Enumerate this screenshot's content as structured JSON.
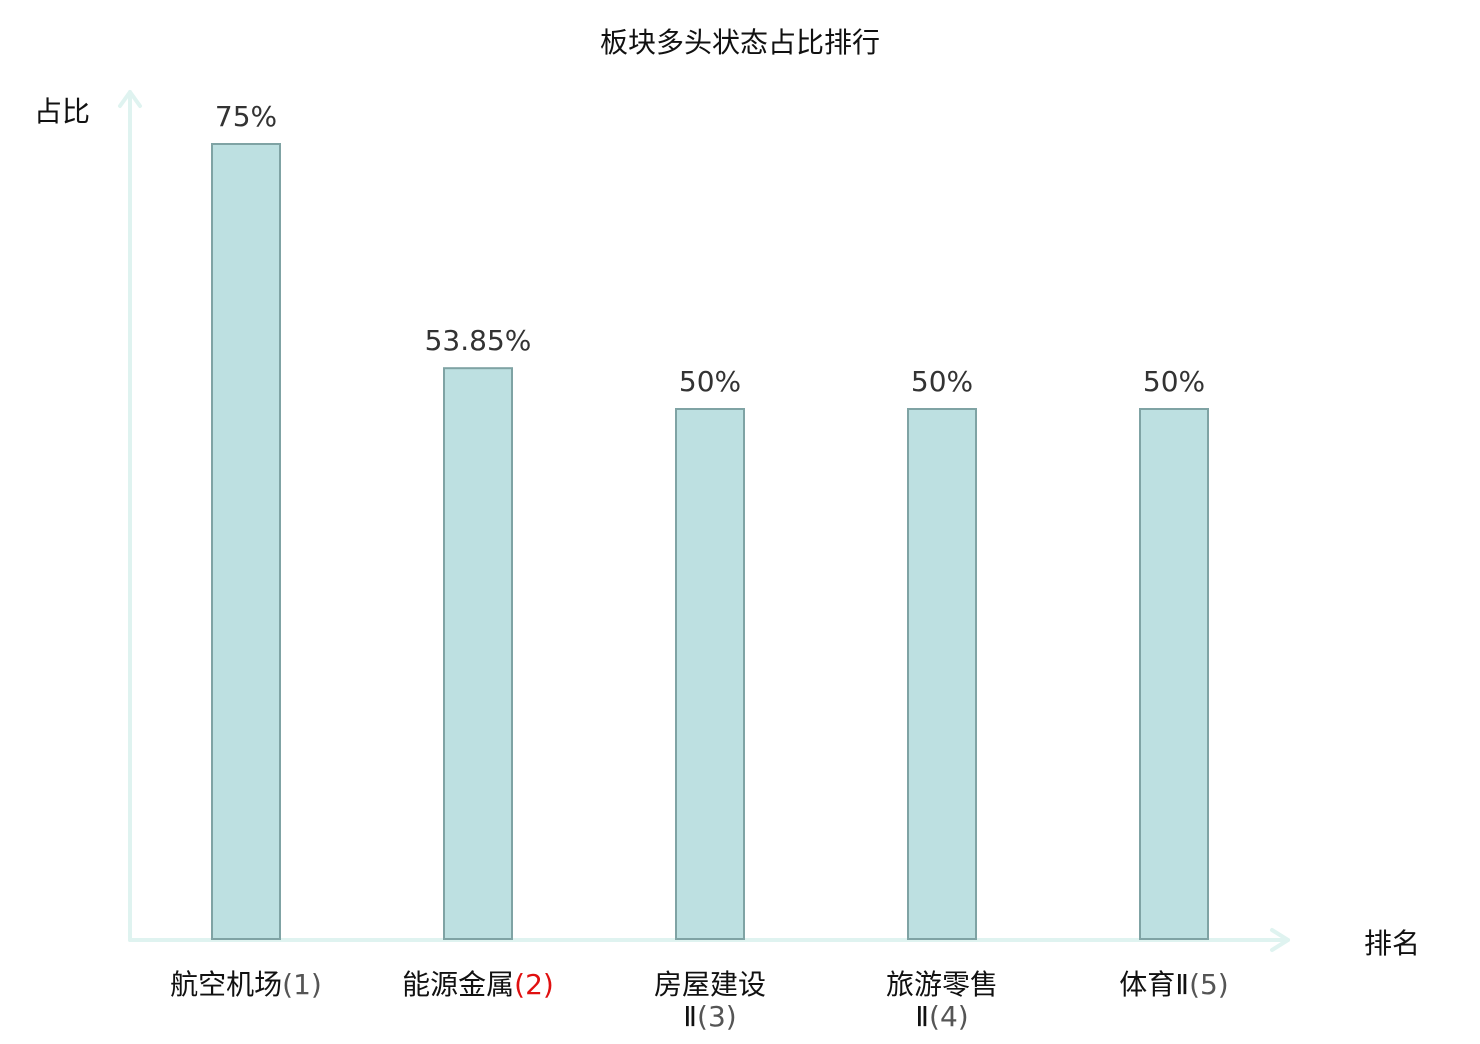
{
  "chart_data": {
    "type": "bar",
    "title": "板块多头状态占比排行",
    "ylabel": "占比",
    "xlabel": "排名",
    "ylim": [
      0,
      75
    ],
    "categories": [
      {
        "name_lines": [
          "航空机场"
        ],
        "rank": "(1)",
        "highlight": false
      },
      {
        "name_lines": [
          "能源金属"
        ],
        "rank": "(2)",
        "highlight": true
      },
      {
        "name_lines": [
          "房屋建设",
          "Ⅱ"
        ],
        "rank": "(3)",
        "highlight": false
      },
      {
        "name_lines": [
          "旅游零售",
          "Ⅱ"
        ],
        "rank": "(4)",
        "highlight": false
      },
      {
        "name_lines": [
          "体育Ⅱ"
        ],
        "rank": "(5)",
        "highlight": false
      }
    ],
    "values": [
      75,
      53.85,
      50,
      50,
      50
    ],
    "value_labels": [
      "75%",
      "53.85%",
      "50%",
      "50%",
      "50%"
    ],
    "grid": false,
    "legend": "none"
  },
  "colors": {
    "bar_fill": "#bde0e1",
    "bar_stroke": "#7fa3a4",
    "axis": "#dff3f0",
    "highlight_text": "#e01010",
    "text": "#111111",
    "value_text": "#333333"
  }
}
